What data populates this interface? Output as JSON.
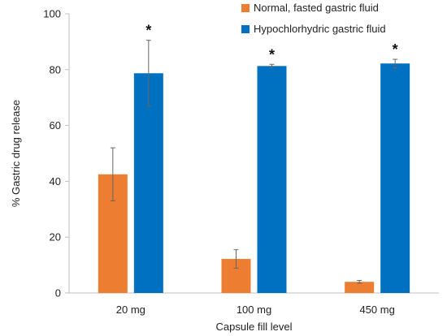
{
  "chart_data": {
    "type": "bar",
    "categories": [
      "20 mg",
      "100 mg",
      "450 mg"
    ],
    "series": [
      {
        "name": "Normal, fasted gastric fluid",
        "color": "#ED7D31",
        "values": [
          42.5,
          12.2,
          4.0
        ],
        "errors": [
          9.5,
          3.3,
          0.5
        ],
        "annotations": [
          "",
          "",
          ""
        ]
      },
      {
        "name": "Hypochlorhydric gastric fluid",
        "color": "#0070C0",
        "values": [
          78.7,
          81.3,
          82.2
        ],
        "errors": [
          11.8,
          0.6,
          1.5
        ],
        "annotations": [
          "*",
          "*",
          "*"
        ]
      }
    ],
    "xlabel": "Capsule fill level",
    "ylabel": "% Gastric drug release",
    "ylim": [
      0,
      100
    ],
    "yticks": [
      0,
      20,
      40,
      60,
      80,
      100
    ],
    "grid": false,
    "legend_position": "top-right"
  }
}
